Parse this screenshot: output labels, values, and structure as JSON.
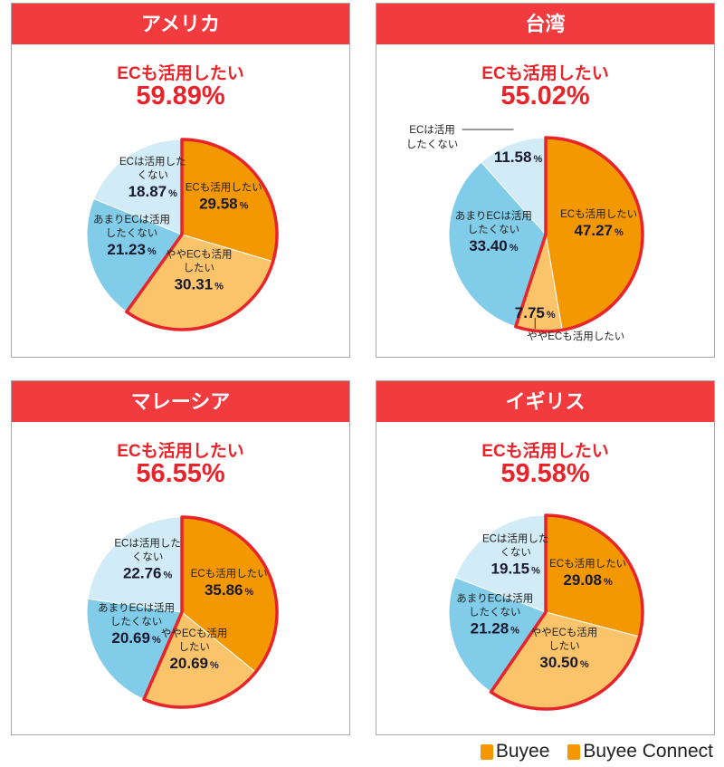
{
  "colors": {
    "header": "#f23b3e",
    "accent": "#e8232a",
    "want": "#f39800",
    "somewhat": "#fbc46a",
    "rather_not": "#80cce9",
    "not": "#d2ecf7"
  },
  "chart_data": [
    {
      "type": "pie",
      "title": "アメリカ",
      "subtitle": "ECも活用したい",
      "headline": "59.89%",
      "slices": [
        {
          "label": [
            "ECも活用したい"
          ],
          "value": 29.58,
          "display": "29.58"
        },
        {
          "label": [
            "ややECも活用",
            "したい"
          ],
          "value": 30.31,
          "display": "30.31"
        },
        {
          "label": [
            "あまりECは活用",
            "したくない"
          ],
          "value": 21.23,
          "display": "21.23"
        },
        {
          "label": [
            "ECは活用した",
            "くない"
          ],
          "value": 18.87,
          "display": "18.87"
        }
      ]
    },
    {
      "type": "pie",
      "title": "台湾",
      "subtitle": "ECも活用したい",
      "headline": "55.02%",
      "slices": [
        {
          "label": [
            "ECも活用したい"
          ],
          "value": 47.27,
          "display": "47.27"
        },
        {
          "label": [
            "ややECも活用したい"
          ],
          "value": 7.75,
          "display": "7.75"
        },
        {
          "label": [
            "あまりECは活用",
            "したくない"
          ],
          "value": 33.4,
          "display": "33.40"
        },
        {
          "label": [
            "ECは活用",
            "したくない"
          ],
          "value": 11.58,
          "display": "11.58"
        }
      ]
    },
    {
      "type": "pie",
      "title": "マレーシア",
      "subtitle": "ECも活用したい",
      "headline": "56.55%",
      "slices": [
        {
          "label": [
            "ECも活用したい"
          ],
          "value": 35.86,
          "display": "35.86"
        },
        {
          "label": [
            "ややECも活用",
            "したい"
          ],
          "value": 20.69,
          "display": "20.69"
        },
        {
          "label": [
            "あまりECは活用",
            "したくない"
          ],
          "value": 20.69,
          "display": "20.69"
        },
        {
          "label": [
            "ECは活用した",
            "くない"
          ],
          "value": 22.76,
          "display": "22.76"
        }
      ]
    },
    {
      "type": "pie",
      "title": "イギリス",
      "subtitle": "ECも活用したい",
      "headline": "59.58%",
      "slices": [
        {
          "label": [
            "ECも活用したい"
          ],
          "value": 29.08,
          "display": "29.08"
        },
        {
          "label": [
            "ややECも活用",
            "したい"
          ],
          "value": 30.5,
          "display": "30.50"
        },
        {
          "label": [
            "あまりECは活用",
            "したくない"
          ],
          "value": 21.28,
          "display": "21.28"
        },
        {
          "label": [
            "ECは活用した",
            "くない"
          ],
          "value": 19.15,
          "display": "19.15"
        }
      ]
    }
  ],
  "percent_sign": "%",
  "logos": [
    "Buyee",
    "Buyee Connect"
  ]
}
